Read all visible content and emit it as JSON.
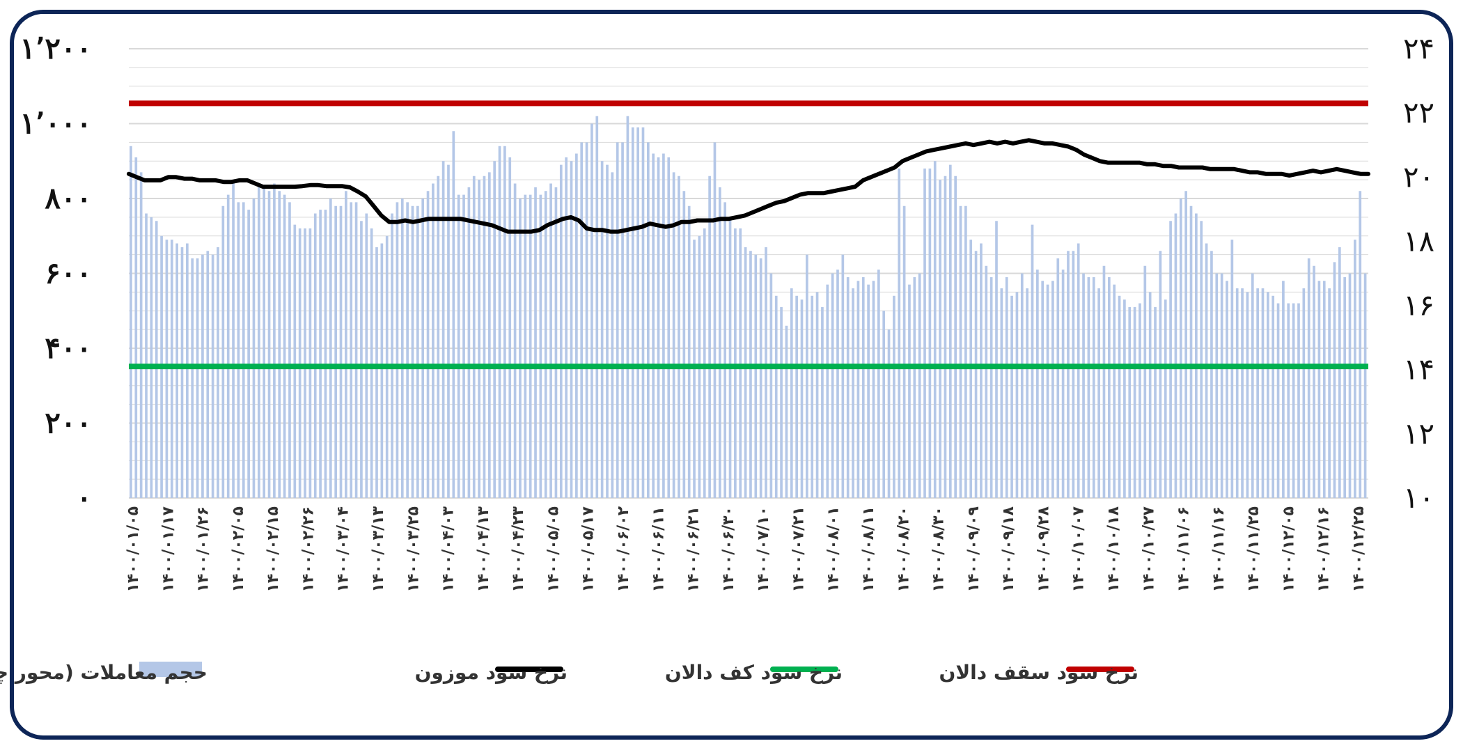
{
  "chart_data": {
    "type": "bar+line",
    "title": "",
    "colors": {
      "volume": "#b4c7e7",
      "weighted": "#000000",
      "floor": "#00b050",
      "ceiling": "#c00000",
      "frame": "#0d2557",
      "grid": "#d9d9d9"
    },
    "left_axis": {
      "range": [
        0,
        1200
      ],
      "ticks": [
        0,
        200,
        400,
        600,
        800,
        1000,
        1200
      ],
      "tick_labels": [
        "۰",
        "۲۰۰",
        "۴۰۰",
        "۶۰۰",
        "۸۰۰",
        "۱٬۰۰۰",
        "۱٬۲۰۰"
      ]
    },
    "right_axis": {
      "range": [
        10,
        24
      ],
      "ticks": [
        10,
        12,
        14,
        16,
        18,
        20,
        22,
        24
      ],
      "tick_labels": [
        "۱۰",
        "۱۲",
        "۱۴",
        "۱۶",
        "۱۸",
        "۲۰",
        "۲۲",
        "۲۴"
      ]
    },
    "x_tick_labels": [
      "۱۴۰۰/۰۱/۰۵",
      "۱۴۰۰/۰۱/۱۷",
      "۱۴۰۰/۰۱/۲۶",
      "۱۴۰۰/۰۲/۰۵",
      "۱۴۰۰/۰۲/۱۵",
      "۱۴۰۰/۰۲/۲۶",
      "۱۴۰۰/۰۳/۰۴",
      "۱۴۰۰/۰۳/۱۳",
      "۱۴۰۰/۰۳/۲۵",
      "۱۴۰۰/۰۴/۰۳",
      "۱۴۰۰/۰۴/۱۳",
      "۱۴۰۰/۰۴/۲۳",
      "۱۴۰۰/۰۵/۰۵",
      "۱۴۰۰/۰۵/۱۷",
      "۱۴۰۰/۰۶/۰۲",
      "۱۴۰۰/۰۶/۱۱",
      "۱۴۰۰/۰۶/۲۱",
      "۱۴۰۰/۰۶/۳۰",
      "۱۴۰۰/۰۷/۱۰",
      "۱۴۰۰/۰۷/۲۱",
      "۱۴۰۰/۰۸/۰۱",
      "۱۴۰۰/۰۸/۱۱",
      "۱۴۰۰/۰۸/۲۰",
      "۱۴۰۰/۰۸/۳۰",
      "۱۴۰۰/۰۹/۰۹",
      "۱۴۰۰/۰۹/۱۸",
      "۱۴۰۰/۰۹/۲۸",
      "۱۴۰۰/۱۰/۰۷",
      "۱۴۰۰/۱۰/۱۸",
      "۱۴۰۰/۱۰/۲۷",
      "۱۴۰۰/۱۱/۰۶",
      "۱۴۰۰/۱۱/۱۶",
      "۱۴۰۰/۱۱/۲۵",
      "۱۴۰۰/۱۲/۰۵",
      "۱۴۰۰/۱۲/۱۶",
      "۱۴۰۰/۱۲/۲۵"
    ],
    "volume_series": {
      "name": "حجم معاملات (محور چپ)",
      "axis": "left",
      "values": [
        940,
        910,
        870,
        760,
        750,
        740,
        700,
        690,
        690,
        680,
        670,
        680,
        640,
        640,
        650,
        660,
        650,
        670,
        780,
        810,
        840,
        790,
        790,
        770,
        800,
        840,
        830,
        820,
        840,
        820,
        810,
        790,
        730,
        720,
        720,
        720,
        760,
        770,
        770,
        800,
        780,
        780,
        820,
        790,
        790,
        740,
        760,
        720,
        670,
        680,
        700,
        760,
        790,
        800,
        790,
        780,
        780,
        800,
        820,
        840,
        860,
        900,
        890,
        980,
        810,
        810,
        830,
        860,
        850,
        860,
        870,
        900,
        940,
        940,
        910,
        840,
        800,
        810,
        810,
        830,
        810,
        820,
        840,
        830,
        890,
        910,
        900,
        920,
        950,
        950,
        1000,
        1020,
        900,
        890,
        870,
        950,
        950,
        1020,
        990,
        990,
        990,
        950,
        920,
        910,
        920,
        910,
        870,
        860,
        820,
        780,
        690,
        700,
        720,
        860,
        950,
        830,
        790,
        750,
        720,
        720,
        670,
        660,
        650,
        640,
        670,
        600,
        540,
        510,
        460,
        560,
        540,
        530,
        650,
        540,
        550,
        510,
        570,
        600,
        610,
        650,
        590,
        560,
        580,
        590,
        570,
        580,
        610,
        500,
        450,
        540,
        880,
        780,
        570,
        590,
        600,
        880,
        880,
        900,
        850,
        860,
        890,
        860,
        780,
        780,
        690,
        660,
        680,
        620,
        590,
        740,
        560,
        590,
        540,
        550,
        600,
        560,
        730,
        610,
        580,
        570,
        580,
        640,
        610,
        660,
        660,
        680,
        600,
        590,
        590,
        560,
        620,
        590,
        570,
        540,
        530,
        510,
        510,
        520,
        620,
        550,
        510,
        660,
        530,
        740,
        760,
        800,
        820,
        780,
        760,
        740,
        680,
        660,
        600,
        600,
        580,
        690,
        560,
        560,
        550,
        600,
        560,
        560,
        550,
        540,
        520,
        580,
        520,
        520,
        520,
        560,
        640,
        620,
        580,
        580,
        560,
        630,
        670,
        590,
        600,
        690,
        820,
        600
      ]
    },
    "weighted_series": {
      "name": "نرخ سود موزون",
      "axis": "right",
      "values": [
        20.1,
        20.0,
        19.9,
        19.9,
        19.9,
        20.0,
        20.0,
        19.95,
        19.95,
        19.9,
        19.9,
        19.9,
        19.85,
        19.85,
        19.9,
        19.9,
        19.8,
        19.7,
        19.7,
        19.7,
        19.7,
        19.7,
        19.72,
        19.75,
        19.75,
        19.72,
        19.72,
        19.72,
        19.68,
        19.55,
        19.4,
        19.1,
        18.8,
        18.6,
        18.6,
        18.65,
        18.6,
        18.65,
        18.7,
        18.7,
        18.7,
        18.7,
        18.7,
        18.65,
        18.6,
        18.55,
        18.5,
        18.4,
        18.3,
        18.3,
        18.3,
        18.3,
        18.35,
        18.5,
        18.6,
        18.7,
        18.75,
        18.65,
        18.4,
        18.35,
        18.35,
        18.3,
        18.3,
        18.35,
        18.4,
        18.45,
        18.55,
        18.5,
        18.45,
        18.5,
        18.6,
        18.6,
        18.65,
        18.65,
        18.65,
        18.7,
        18.7,
        18.75,
        18.8,
        18.9,
        19.0,
        19.1,
        19.2,
        19.25,
        19.35,
        19.45,
        19.5,
        19.5,
        19.5,
        19.55,
        19.6,
        19.65,
        19.7,
        19.9,
        20.0,
        20.1,
        20.2,
        20.3,
        20.5,
        20.6,
        20.7,
        20.8,
        20.85,
        20.9,
        20.95,
        21.0,
        21.05,
        21.0,
        21.05,
        21.1,
        21.05,
        21.1,
        21.05,
        21.1,
        21.15,
        21.1,
        21.05,
        21.05,
        21.0,
        20.95,
        20.85,
        20.7,
        20.6,
        20.5,
        20.45,
        20.45,
        20.45,
        20.45,
        20.45,
        20.4,
        20.4,
        20.35,
        20.35,
        20.3,
        20.3,
        20.3,
        20.3,
        20.25,
        20.25,
        20.25,
        20.25,
        20.2,
        20.15,
        20.15,
        20.1,
        20.1,
        20.1,
        20.05,
        20.1,
        20.15,
        20.2,
        20.15,
        20.2,
        20.25,
        20.2,
        20.15,
        20.1,
        20.1
      ]
    },
    "floor_series": {
      "name": "نرخ سود کف دالان",
      "axis": "right",
      "value": 14.1
    },
    "ceiling_series": {
      "name": "نرخ سود سقف دالان",
      "axis": "right",
      "value": 22.3
    },
    "legend_position": "bottom",
    "grid": true
  }
}
